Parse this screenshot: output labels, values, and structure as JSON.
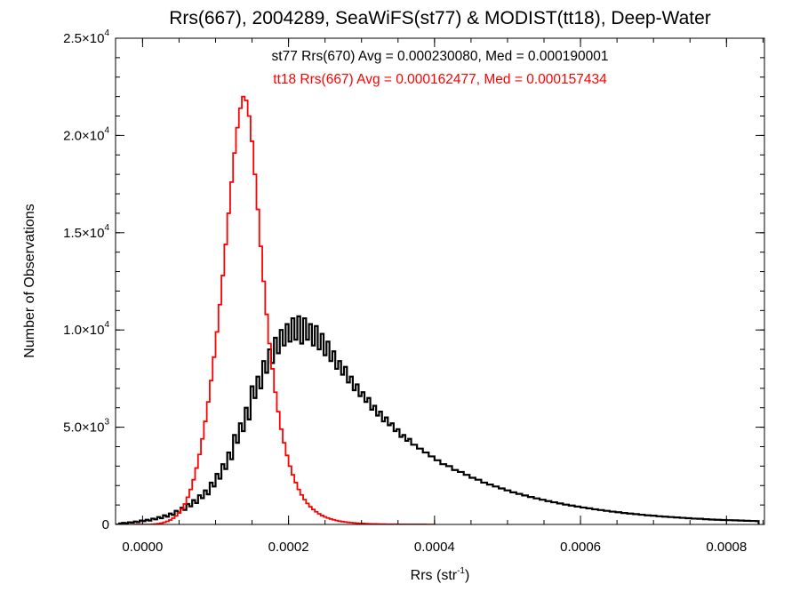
{
  "chart_data": {
    "type": "histogram",
    "title": "Rrs(667), 2004289, SeaWiFS(st77) & MODIST(tt18), Deep-Water",
    "xlabel": "Rrs (str",
    "xlabel_sup": "-1",
    "xlabel_close": ")",
    "ylabel": "Number of Observations",
    "xlim": [
      -3.7e-05,
      0.000852
    ],
    "ylim": [
      0,
      25000
    ],
    "x_ticks": [
      0.0,
      0.0002,
      0.0004,
      0.0006,
      0.0008
    ],
    "x_tick_labels": [
      "0.0000",
      "0.0002",
      "0.0004",
      "0.0006",
      "0.0008"
    ],
    "y_ticks": [
      0,
      5000,
      10000,
      15000,
      20000,
      25000
    ],
    "y_tick_labels": [
      {
        "mant": "0",
        "exp": ""
      },
      {
        "mant": "5.0×10",
        "exp": "3"
      },
      {
        "mant": "1.0×10",
        "exp": "4"
      },
      {
        "mant": "1.5×10",
        "exp": "4"
      },
      {
        "mant": "2.0×10",
        "exp": "4"
      },
      {
        "mant": "2.5×10",
        "exp": "4"
      }
    ],
    "bin_width": 4e-06,
    "series": [
      {
        "name": "st77 Rrs(670)",
        "label": "st77 Rrs(670) Avg = 0.000230080, Med = 0.000190001",
        "color": "#000000",
        "x_start": -3.6e-05,
        "values": [
          0,
          50,
          80,
          60,
          110,
          90,
          150,
          120,
          200,
          170,
          240,
          200,
          300,
          260,
          380,
          320,
          470,
          400,
          560,
          490,
          700,
          610,
          860,
          750,
          1050,
          930,
          1250,
          1100,
          1500,
          1350,
          1750,
          1550,
          2150,
          1950,
          2600,
          2350,
          3100,
          2850,
          3700,
          3350,
          4600,
          4200,
          5200,
          4800,
          6000,
          5400,
          7100,
          6500,
          7600,
          7000,
          8400,
          7800,
          9000,
          8300,
          9600,
          8800,
          10000,
          9200,
          10300,
          9400,
          10600,
          9500,
          10700,
          9300,
          10600,
          9500,
          10300,
          9200,
          10200,
          9000,
          9800,
          8700,
          9400,
          8400,
          8900,
          8000,
          8400,
          7700,
          8100,
          7300,
          7600,
          6900,
          7200,
          6600,
          6800,
          6300,
          6500,
          5900,
          6100,
          5600,
          5800,
          5300,
          5500,
          5100,
          5200,
          4800,
          4900,
          4500,
          4600,
          4300,
          4400,
          4100,
          4100,
          3900,
          3900,
          3700,
          3700,
          3500,
          3500,
          3300,
          3300,
          3100,
          3100,
          3000,
          3000,
          2800,
          2800,
          2700,
          2700,
          2550,
          2550,
          2400,
          2400,
          2300,
          2300,
          2150,
          2150,
          2050,
          2050,
          1950,
          1950,
          1850,
          1850,
          1750,
          1750,
          1650,
          1650,
          1570,
          1570,
          1490,
          1490,
          1410,
          1410,
          1340,
          1340,
          1270,
          1270,
          1200,
          1200,
          1140,
          1140,
          1080,
          1080,
          1020,
          1020,
          970,
          970,
          920,
          920,
          870,
          870,
          830,
          830,
          780,
          780,
          740,
          740,
          700,
          700,
          660,
          660,
          630,
          630,
          590,
          590,
          560,
          560,
          530,
          530,
          500,
          500,
          470,
          470,
          450,
          450,
          420,
          420,
          400,
          400,
          380,
          380,
          360,
          360,
          340,
          340,
          320,
          320,
          300,
          300,
          290,
          290,
          270,
          270,
          250,
          250,
          240,
          240,
          230,
          230,
          220,
          220,
          210,
          210,
          200,
          200,
          190,
          190,
          180,
          180,
          170
        ]
      },
      {
        "name": "tt18 Rrs(667)",
        "label": "tt18 Rrs(667) Avg = 0.000162477, Med = 0.000157434",
        "color": "#ff0000",
        "x_start": -1.2e-05,
        "values": [
          0,
          0,
          0,
          0,
          0,
          0,
          10,
          20,
          40,
          70,
          110,
          160,
          230,
          320,
          440,
          600,
          800,
          1050,
          1400,
          1800,
          2300,
          2900,
          3600,
          4400,
          5300,
          6300,
          7400,
          8600,
          9900,
          11300,
          12800,
          14400,
          16000,
          17600,
          19100,
          20400,
          21400,
          22000,
          21800,
          21000,
          19700,
          18000,
          16200,
          14300,
          12500,
          10800,
          9300,
          8000,
          6800,
          5800,
          4900,
          4200,
          3550,
          3000,
          2550,
          2150,
          1800,
          1520,
          1280,
          1080,
          910,
          770,
          650,
          550,
          460,
          390,
          330,
          280,
          240,
          200,
          170,
          145,
          125,
          105,
          90,
          78,
          66,
          56,
          48,
          41,
          35,
          30,
          25,
          21,
          18,
          15,
          13,
          11,
          9,
          8,
          7,
          6,
          5,
          4,
          4,
          3,
          3,
          2,
          2,
          2,
          1,
          1,
          1
        ]
      }
    ]
  }
}
